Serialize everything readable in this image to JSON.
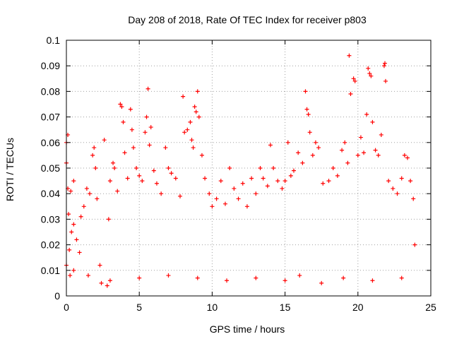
{
  "chart_data": {
    "type": "scatter",
    "title": "Day 208 of 2018, Rate Of TEC Index for receiver p803",
    "xlabel": "GPS time / hours",
    "ylabel": "ROTI / TECUs",
    "xlim": [
      0,
      25
    ],
    "ylim": [
      0,
      0.1
    ],
    "x_ticks": [
      0,
      5,
      10,
      15,
      20,
      25
    ],
    "x_tick_labels": [
      "0",
      "5",
      "10",
      "15",
      "20",
      "25"
    ],
    "y_ticks": [
      0,
      0.01,
      0.02,
      0.03,
      0.04,
      0.05,
      0.06,
      0.07,
      0.08,
      0.09,
      0.1
    ],
    "y_tick_labels": [
      "0",
      "0.01",
      "0.02",
      "0.03",
      "0.04",
      "0.05",
      "0.06",
      "0.07",
      "0.08",
      "0.09",
      "0.1"
    ],
    "grid": true,
    "marker": "+",
    "color": "#ff0000",
    "series": [
      {
        "points": [
          [
            0.0,
            0.012
          ],
          [
            0.0,
            0.052
          ],
          [
            0.0,
            0.06
          ],
          [
            0.1,
            0.063
          ],
          [
            0.1,
            0.042
          ],
          [
            0.15,
            0.032
          ],
          [
            0.2,
            0.018
          ],
          [
            0.25,
            0.008
          ],
          [
            0.3,
            0.041
          ],
          [
            0.35,
            0.025
          ],
          [
            0.5,
            0.028
          ],
          [
            0.5,
            0.045
          ],
          [
            0.7,
            0.022
          ],
          [
            0.9,
            0.017
          ],
          [
            1.0,
            0.031
          ],
          [
            1.2,
            0.035
          ],
          [
            1.4,
            0.042
          ],
          [
            1.6,
            0.04
          ],
          [
            1.8,
            0.055
          ],
          [
            1.9,
            0.058
          ],
          [
            2.0,
            0.05
          ],
          [
            2.1,
            0.038
          ],
          [
            2.3,
            0.012
          ],
          [
            2.4,
            0.005
          ],
          [
            2.6,
            0.061
          ],
          [
            2.8,
            0.004
          ],
          [
            2.9,
            0.03
          ],
          [
            3.0,
            0.045
          ],
          [
            3.2,
            0.052
          ],
          [
            3.3,
            0.05
          ],
          [
            3.5,
            0.041
          ],
          [
            3.7,
            0.075
          ],
          [
            3.8,
            0.074
          ],
          [
            3.9,
            0.068
          ],
          [
            4.0,
            0.056
          ],
          [
            4.2,
            0.046
          ],
          [
            4.4,
            0.073
          ],
          [
            4.5,
            0.065
          ],
          [
            4.6,
            0.058
          ],
          [
            4.8,
            0.05
          ],
          [
            5.0,
            0.047
          ],
          [
            5.2,
            0.045
          ],
          [
            5.4,
            0.064
          ],
          [
            5.5,
            0.07
          ],
          [
            5.6,
            0.081
          ],
          [
            5.7,
            0.059
          ],
          [
            5.8,
            0.066
          ],
          [
            6.0,
            0.049
          ],
          [
            6.2,
            0.044
          ],
          [
            6.5,
            0.04
          ],
          [
            6.8,
            0.058
          ],
          [
            7.0,
            0.05
          ],
          [
            7.2,
            0.048
          ],
          [
            7.5,
            0.046
          ],
          [
            7.8,
            0.039
          ],
          [
            8.0,
            0.078
          ],
          [
            8.1,
            0.064
          ],
          [
            8.3,
            0.065
          ],
          [
            8.5,
            0.068
          ],
          [
            8.6,
            0.061
          ],
          [
            8.7,
            0.058
          ],
          [
            8.8,
            0.074
          ],
          [
            8.9,
            0.072
          ],
          [
            9.0,
            0.08
          ],
          [
            9.1,
            0.07
          ],
          [
            9.3,
            0.055
          ],
          [
            9.5,
            0.046
          ],
          [
            9.8,
            0.04
          ],
          [
            10.0,
            0.035
          ],
          [
            10.3,
            0.038
          ],
          [
            10.6,
            0.045
          ],
          [
            10.9,
            0.036
          ],
          [
            11.2,
            0.05
          ],
          [
            11.5,
            0.042
          ],
          [
            11.8,
            0.038
          ],
          [
            12.1,
            0.044
          ],
          [
            12.4,
            0.035
          ],
          [
            12.7,
            0.046
          ],
          [
            13.0,
            0.04
          ],
          [
            13.3,
            0.05
          ],
          [
            13.5,
            0.046
          ],
          [
            13.8,
            0.043
          ],
          [
            14.0,
            0.059
          ],
          [
            14.2,
            0.05
          ],
          [
            14.5,
            0.045
          ],
          [
            14.8,
            0.042
          ],
          [
            15.0,
            0.045
          ],
          [
            15.2,
            0.06
          ],
          [
            15.4,
            0.047
          ],
          [
            15.6,
            0.049
          ],
          [
            15.9,
            0.056
          ],
          [
            16.2,
            0.052
          ],
          [
            16.4,
            0.08
          ],
          [
            16.5,
            0.073
          ],
          [
            16.6,
            0.071
          ],
          [
            16.7,
            0.064
          ],
          [
            16.9,
            0.055
          ],
          [
            17.1,
            0.06
          ],
          [
            17.3,
            0.058
          ],
          [
            17.6,
            0.044
          ],
          [
            18.0,
            0.045
          ],
          [
            18.3,
            0.05
          ],
          [
            18.6,
            0.047
          ],
          [
            18.9,
            0.057
          ],
          [
            19.1,
            0.06
          ],
          [
            19.3,
            0.052
          ],
          [
            19.4,
            0.094
          ],
          [
            19.5,
            0.079
          ],
          [
            19.7,
            0.085
          ],
          [
            19.8,
            0.084
          ],
          [
            20.0,
            0.055
          ],
          [
            20.2,
            0.062
          ],
          [
            20.4,
            0.056
          ],
          [
            20.6,
            0.071
          ],
          [
            20.7,
            0.089
          ],
          [
            20.8,
            0.087
          ],
          [
            20.9,
            0.086
          ],
          [
            21.0,
            0.068
          ],
          [
            21.2,
            0.057
          ],
          [
            21.4,
            0.055
          ],
          [
            21.6,
            0.063
          ],
          [
            21.8,
            0.09
          ],
          [
            21.85,
            0.091
          ],
          [
            21.9,
            0.084
          ],
          [
            22.1,
            0.045
          ],
          [
            22.4,
            0.042
          ],
          [
            22.7,
            0.04
          ],
          [
            23.0,
            0.046
          ],
          [
            23.2,
            0.055
          ],
          [
            23.4,
            0.054
          ],
          [
            23.6,
            0.045
          ],
          [
            23.8,
            0.038
          ],
          [
            23.9,
            0.02
          ],
          [
            0.5,
            0.01
          ],
          [
            1.5,
            0.008
          ],
          [
            3.0,
            0.006
          ],
          [
            5.0,
            0.007
          ],
          [
            7.0,
            0.008
          ],
          [
            9.0,
            0.007
          ],
          [
            11.0,
            0.006
          ],
          [
            13.0,
            0.007
          ],
          [
            15.0,
            0.006
          ],
          [
            16.0,
            0.008
          ],
          [
            17.5,
            0.005
          ],
          [
            19.0,
            0.007
          ],
          [
            21.0,
            0.006
          ],
          [
            23.0,
            0.007
          ]
        ]
      }
    ]
  }
}
